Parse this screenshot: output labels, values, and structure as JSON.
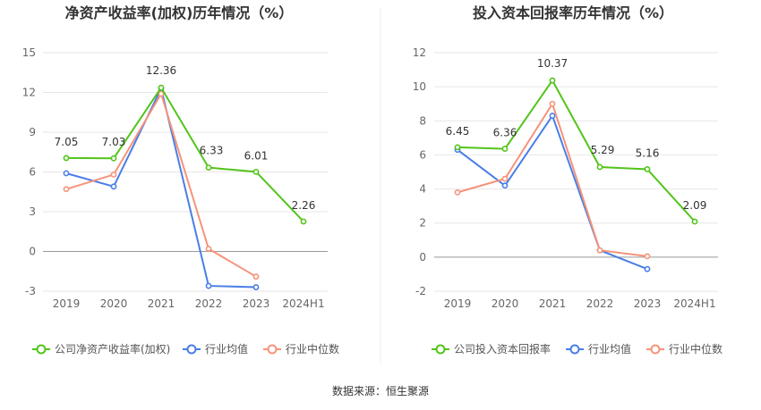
{
  "source_note": "数据来源：恒生聚源",
  "colors": {
    "company": "#52c41a",
    "industry_avg": "#4a7ee6",
    "industry_median": "#f5937a"
  },
  "chart_data": [
    {
      "type": "line",
      "title": "净资产收益率(加权)历年情况（%）",
      "categories": [
        "2019",
        "2020",
        "2021",
        "2022",
        "2023",
        "2024H1"
      ],
      "ylim": [
        -3,
        15
      ],
      "yticks": [
        -3,
        0,
        3,
        6,
        9,
        12,
        15
      ],
      "grid": true,
      "legend_position": "bottom",
      "series": [
        {
          "name": "公司净资产收益率(加权)",
          "color": "#52c41a",
          "values": [
            7.05,
            7.03,
            12.36,
            6.33,
            6.01,
            2.26
          ],
          "labels": [
            "7.05",
            "7.03",
            "12.36",
            "6.33",
            "6.01",
            "2.26"
          ]
        },
        {
          "name": "行业均值",
          "color": "#4a7ee6",
          "values": [
            5.9,
            4.9,
            12.3,
            -2.6,
            -2.7,
            null
          ]
        },
        {
          "name": "行业中位数",
          "color": "#f5937a",
          "values": [
            4.7,
            5.8,
            11.9,
            0.2,
            -1.9,
            null
          ]
        }
      ]
    },
    {
      "type": "line",
      "title": "投入资本回报率历年情况（%）",
      "categories": [
        "2019",
        "2020",
        "2021",
        "2022",
        "2023",
        "2024H1"
      ],
      "ylim": [
        -2,
        12
      ],
      "yticks": [
        -2,
        0,
        2,
        4,
        6,
        8,
        10,
        12
      ],
      "grid": true,
      "legend_position": "bottom",
      "series": [
        {
          "name": "公司投入资本回报率",
          "color": "#52c41a",
          "values": [
            6.45,
            6.36,
            10.37,
            5.29,
            5.16,
            2.09
          ],
          "labels": [
            "6.45",
            "6.36",
            "10.37",
            "5.29",
            "5.16",
            "2.09"
          ]
        },
        {
          "name": "行业均值",
          "color": "#4a7ee6",
          "values": [
            6.3,
            4.2,
            8.3,
            0.4,
            -0.7,
            null
          ]
        },
        {
          "name": "行业中位数",
          "color": "#f5937a",
          "values": [
            3.8,
            4.6,
            9.0,
            0.4,
            0.05,
            null
          ]
        }
      ]
    }
  ]
}
